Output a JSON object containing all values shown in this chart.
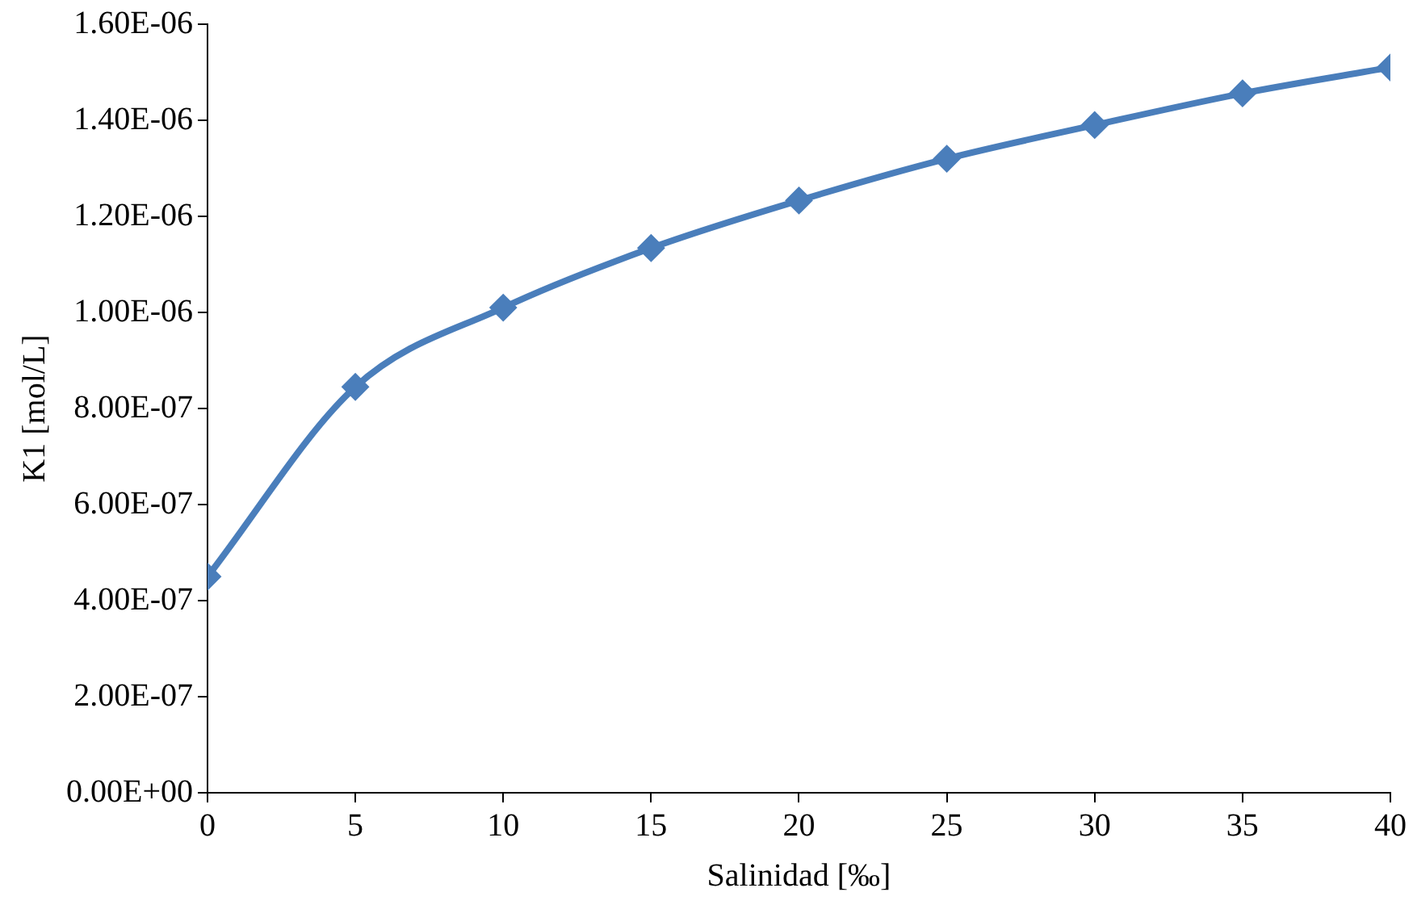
{
  "chart_data": {
    "type": "line",
    "xlabel": "Salinidad [‰]",
    "ylabel": "K1 [mol/L]",
    "x": [
      0,
      5,
      10,
      15,
      20,
      25,
      30,
      35,
      40
    ],
    "series": [
      {
        "color": "#4a7ebb",
        "values": [
          4.5e-07,
          8.45e-07,
          1.01e-06,
          1.134e-06,
          1.233e-06,
          1.32e-06,
          1.39e-06,
          1.456e-06,
          1.51e-06
        ]
      }
    ],
    "xlim": [
      0,
      40
    ],
    "xticks": [
      0,
      5,
      10,
      15,
      20,
      25,
      30,
      35,
      40
    ],
    "ylim": [
      0,
      1.6e-06
    ],
    "yticks": [
      {
        "value": 0,
        "label": "0.00E+00"
      },
      {
        "value": 2e-07,
        "label": "2.00E-07"
      },
      {
        "value": 4e-07,
        "label": "4.00E-07"
      },
      {
        "value": 6e-07,
        "label": "6.00E-07"
      },
      {
        "value": 8e-07,
        "label": "8.00E-07"
      },
      {
        "value": 1e-06,
        "label": "1.00E-06"
      },
      {
        "value": 1.2e-06,
        "label": "1.20E-06"
      },
      {
        "value": 1.4e-06,
        "label": "1.40E-06"
      },
      {
        "value": 1.6e-06,
        "label": "1.60E-06"
      }
    ],
    "grid": false,
    "legend": false,
    "marker": "diamond",
    "line_style": "solid"
  }
}
